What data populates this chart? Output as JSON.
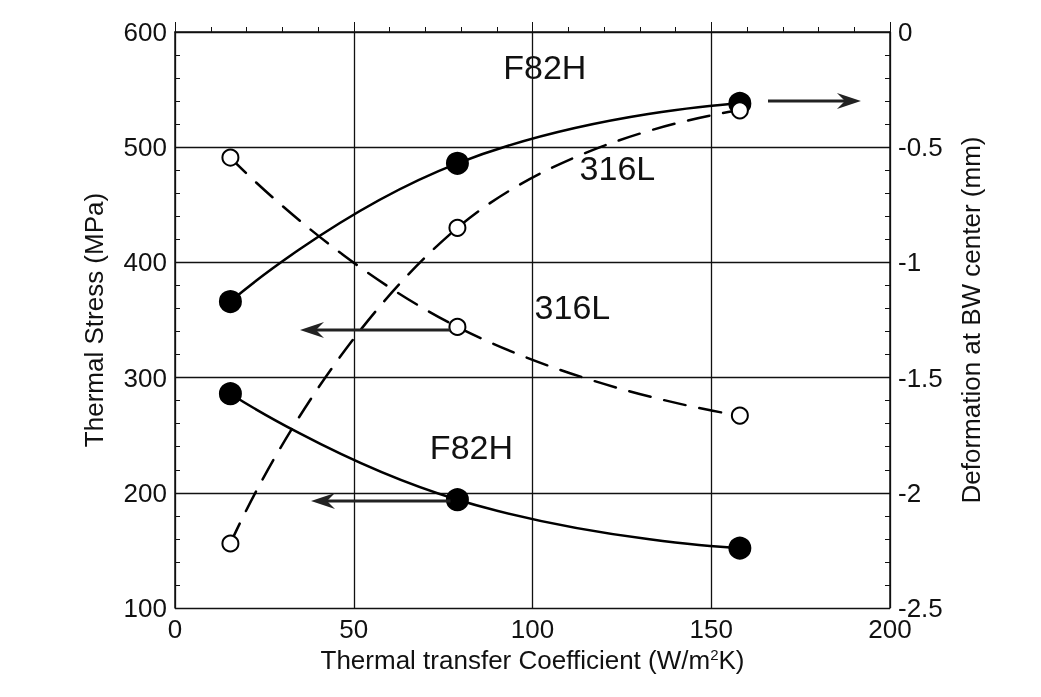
{
  "chart_data": {
    "type": "line",
    "xlabel": "Thermal transfer Coefficient (W/m$^{2}$K)",
    "ylabel": "Thermal Stress (MPa)",
    "y2label": "Deformation at BW center (mm)",
    "x": [
      15.5,
      79,
      158
    ],
    "series": [
      {
        "name": "F82H",
        "color": "#000000",
        "values": [
          286,
          194,
          152
        ],
        "line_style": "solid",
        "marker": "circle"
      },
      {
        "name": "316L",
        "color": "#000000",
        "values": [
          491,
          344,
          267
        ],
        "line_style": "dashed",
        "marker": "circle"
      },
      {
        "name": "F82H",
        "color": "#000000",
        "values": [
          -1.17,
          -0.57,
          -0.31
        ],
        "line_style": "solid",
        "marker": "circle",
        "axis": "y2"
      },
      {
        "name": "316L",
        "color": "#000000",
        "values": [
          -2.22,
          -0.85,
          -0.34
        ],
        "line_style": "dashed",
        "marker": "circle",
        "axis": "y2"
      }
    ],
    "xlim": [
      0,
      200
    ],
    "xticks": [
      0,
      50,
      100,
      150,
      200
    ],
    "ylim": [
      100,
      600
    ],
    "yticks": [
      100,
      200,
      300,
      400,
      500,
      600
    ],
    "y2lim": [
      -2.5,
      0
    ],
    "y2ticks": [
      -2.5,
      -2,
      -1.5,
      -1,
      -0.5,
      0
    ],
    "grid": true,
    "legend": false
  }
}
